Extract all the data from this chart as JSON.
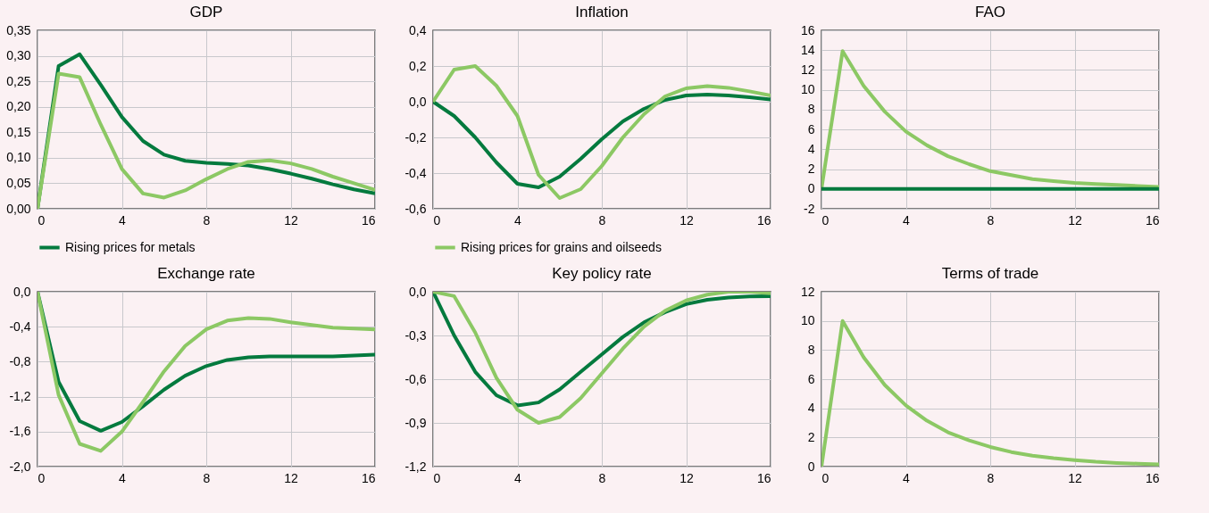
{
  "chart_data": [
    {
      "type": "line",
      "title": "GDP",
      "x": [
        0,
        1,
        2,
        3,
        4,
        5,
        6,
        7,
        8,
        9,
        10,
        11,
        12,
        13,
        14,
        15,
        16
      ],
      "xlim": [
        0,
        16
      ],
      "xticks": [
        0,
        4,
        8,
        12,
        16
      ],
      "ylim": [
        0,
        0.35
      ],
      "yticks": [
        {
          "value": 0,
          "label": "0,00"
        },
        {
          "value": 0.05,
          "label": "0,05"
        },
        {
          "value": 0.1,
          "label": "0,10"
        },
        {
          "value": 0.15,
          "label": "0,15"
        },
        {
          "value": 0.2,
          "label": "0,20"
        },
        {
          "value": 0.25,
          "label": "0,25"
        },
        {
          "value": 0.3,
          "label": "0,30"
        },
        {
          "value": 0.35,
          "label": "0,35"
        }
      ],
      "grid": true,
      "legend": "bottom",
      "marker": "none",
      "line_style": "solid",
      "series": [
        {
          "name": "Rising prices for metals",
          "color": "#047a3e",
          "values": [
            0,
            0.28,
            0.303,
            0.243,
            0.18,
            0.133,
            0.106,
            0.094,
            0.09,
            0.088,
            0.085,
            0.078,
            0.069,
            0.059,
            0.048,
            0.038,
            0.03
          ]
        },
        {
          "color": "#8cc864",
          "values": [
            0,
            0.265,
            0.258,
            0.165,
            0.078,
            0.03,
            0.022,
            0.036,
            0.058,
            0.078,
            0.092,
            0.095,
            0.089,
            0.078,
            0.063,
            0.05,
            0.037
          ]
        }
      ]
    },
    {
      "type": "line",
      "title": "Inflation",
      "x": [
        0,
        1,
        2,
        3,
        4,
        5,
        6,
        7,
        8,
        9,
        10,
        11,
        12,
        13,
        14,
        15,
        16
      ],
      "xlim": [
        0,
        16
      ],
      "xticks": [
        0,
        4,
        8,
        12,
        16
      ],
      "ylim": [
        -0.6,
        0.4
      ],
      "yticks": [
        {
          "value": -0.6,
          "label": "-0,6"
        },
        {
          "value": -0.4,
          "label": "-0,4"
        },
        {
          "value": -0.2,
          "label": "-0,2"
        },
        {
          "value": 0,
          "label": "0,0"
        },
        {
          "value": 0.2,
          "label": "0,2"
        },
        {
          "value": 0.4,
          "label": "0,4"
        }
      ],
      "grid": true,
      "legend": "bottom",
      "marker": "none",
      "line_style": "solid",
      "series": [
        {
          "color": "#047a3e",
          "values": [
            0,
            -0.08,
            -0.2,
            -0.34,
            -0.46,
            -0.48,
            -0.42,
            -0.32,
            -0.21,
            -0.11,
            -0.04,
            0.01,
            0.035,
            0.04,
            0.035,
            0.025,
            0.013
          ]
        },
        {
          "name": "Rising prices for grains and oilseeds",
          "color": "#8cc864",
          "values": [
            0,
            0.18,
            0.2,
            0.09,
            -0.08,
            -0.41,
            -0.54,
            -0.49,
            -0.36,
            -0.2,
            -0.07,
            0.03,
            0.075,
            0.088,
            0.078,
            0.058,
            0.035
          ]
        }
      ]
    },
    {
      "type": "line",
      "title": "FAO",
      "x": [
        0,
        1,
        2,
        3,
        4,
        5,
        6,
        7,
        8,
        9,
        10,
        11,
        12,
        13,
        14,
        15,
        16
      ],
      "xlim": [
        0,
        16
      ],
      "xticks": [
        0,
        4,
        8,
        12,
        16
      ],
      "ylim": [
        -2,
        16
      ],
      "yticks": [
        -2,
        0,
        2,
        4,
        6,
        8,
        10,
        12,
        14,
        16
      ],
      "grid": true,
      "marker": "none",
      "line_style": "solid",
      "series": [
        {
          "color": "#8cc864",
          "values": [
            0,
            13.9,
            10.4,
            7.8,
            5.8,
            4.4,
            3.3,
            2.5,
            1.8,
            1.4,
            1.0,
            0.8,
            0.6,
            0.5,
            0.4,
            0.3,
            0.2
          ]
        },
        {
          "color": "#047a3e",
          "values": [
            0,
            0,
            0,
            0,
            0,
            0,
            0,
            0,
            0,
            0,
            0,
            0,
            0,
            0,
            0,
            0,
            0
          ]
        }
      ]
    },
    {
      "type": "line",
      "title": "Exchange rate",
      "x": [
        0,
        1,
        2,
        3,
        4,
        5,
        6,
        7,
        8,
        9,
        10,
        11,
        12,
        13,
        14,
        15,
        16
      ],
      "xlim": [
        0,
        16
      ],
      "xticks": [
        0,
        4,
        8,
        12,
        16
      ],
      "ylim": [
        -2,
        0
      ],
      "yticks": [
        {
          "value": -2,
          "label": "-2,0"
        },
        {
          "value": -1.6,
          "label": "-1,6"
        },
        {
          "value": -1.2,
          "label": "-1,2"
        },
        {
          "value": -0.8,
          "label": "-0,8"
        },
        {
          "value": -0.4,
          "label": "-0,4"
        },
        {
          "value": 0,
          "label": "0,0"
        }
      ],
      "grid": true,
      "marker": "none",
      "line_style": "solid",
      "series": [
        {
          "color": "#047a3e",
          "values": [
            0,
            -1.03,
            -1.48,
            -1.59,
            -1.49,
            -1.31,
            -1.12,
            -0.96,
            -0.85,
            -0.78,
            -0.75,
            -0.74,
            -0.74,
            -0.74,
            -0.74,
            -0.73,
            -0.72
          ]
        },
        {
          "color": "#8cc864",
          "values": [
            0,
            -1.18,
            -1.74,
            -1.82,
            -1.6,
            -1.26,
            -0.91,
            -0.62,
            -0.43,
            -0.33,
            -0.3,
            -0.31,
            -0.35,
            -0.38,
            -0.41,
            -0.42,
            -0.43
          ]
        }
      ]
    },
    {
      "type": "line",
      "title": "Key policy rate",
      "x": [
        0,
        1,
        2,
        3,
        4,
        5,
        6,
        7,
        8,
        9,
        10,
        11,
        12,
        13,
        14,
        15,
        16
      ],
      "xlim": [
        0,
        16
      ],
      "xticks": [
        0,
        4,
        8,
        12,
        16
      ],
      "ylim": [
        -1.2,
        0
      ],
      "yticks": [
        {
          "value": -1.2,
          "label": "-1,2"
        },
        {
          "value": -0.9,
          "label": "-0,9"
        },
        {
          "value": -0.6,
          "label": "-0,6"
        },
        {
          "value": -0.3,
          "label": "-0,3"
        },
        {
          "value": 0,
          "label": "0,0"
        }
      ],
      "grid": true,
      "marker": "none",
      "line_style": "solid",
      "series": [
        {
          "color": "#047a3e",
          "values": [
            0,
            -0.3,
            -0.55,
            -0.71,
            -0.78,
            -0.76,
            -0.67,
            -0.55,
            -0.43,
            -0.31,
            -0.21,
            -0.14,
            -0.085,
            -0.055,
            -0.04,
            -0.032,
            -0.03
          ]
        },
        {
          "color": "#8cc864",
          "values": [
            0,
            -0.03,
            -0.28,
            -0.59,
            -0.81,
            -0.9,
            -0.86,
            -0.73,
            -0.56,
            -0.39,
            -0.24,
            -0.13,
            -0.06,
            -0.02,
            0,
            0,
            -0.01
          ]
        }
      ]
    },
    {
      "type": "line",
      "title": "Terms of trade",
      "x": [
        0,
        1,
        2,
        3,
        4,
        5,
        6,
        7,
        8,
        9,
        10,
        11,
        12,
        13,
        14,
        15,
        16
      ],
      "xlim": [
        0,
        16
      ],
      "xticks": [
        0,
        4,
        8,
        12,
        16
      ],
      "ylim": [
        0,
        12
      ],
      "yticks": [
        0,
        2,
        4,
        6,
        8,
        10,
        12
      ],
      "grid": true,
      "marker": "none",
      "line_style": "solid",
      "series": [
        {
          "color": "#8cc864",
          "values": [
            0,
            10,
            7.5,
            5.6,
            4.2,
            3.15,
            2.35,
            1.8,
            1.35,
            1,
            0.75,
            0.58,
            0.45,
            0.33,
            0.25,
            0.2,
            0.15
          ]
        }
      ]
    }
  ]
}
